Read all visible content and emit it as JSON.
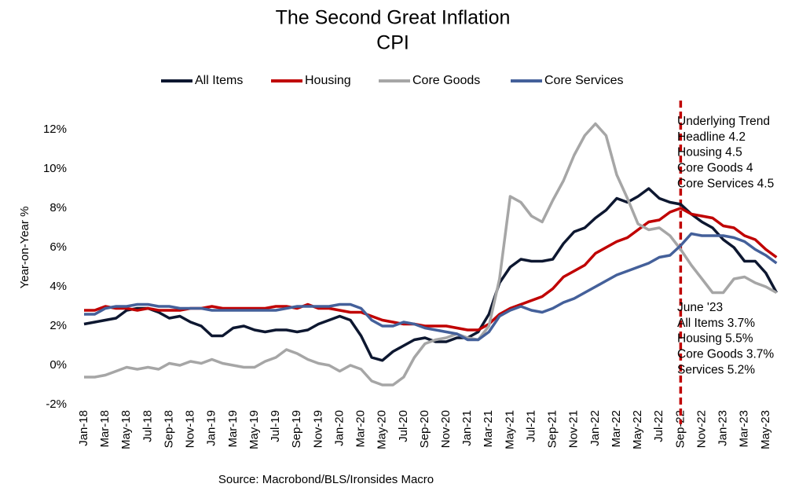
{
  "chart_data": {
    "type": "line",
    "title": "The Second Great Inflation",
    "subtitle": "CPI",
    "y_label": "Year-on-Year %",
    "source": "Source: Macrobond/BLS/Ironsides Macro",
    "categories": [
      "Jan-18",
      null,
      "Mar-18",
      null,
      "May-18",
      null,
      "Jul-18",
      null,
      "Sep-18",
      null,
      "Nov-18",
      null,
      "Jan-19",
      null,
      "Mar-19",
      null,
      "May-19",
      null,
      "Jul-19",
      null,
      "Sep-19",
      null,
      "Nov-19",
      null,
      "Jan-20",
      null,
      "Mar-20",
      null,
      "May-20",
      null,
      "Jul-20",
      null,
      "Sep-20",
      null,
      "Nov-20",
      null,
      "Jan-21",
      null,
      "Mar-21",
      null,
      "May-21",
      null,
      "Jul-21",
      null,
      "Sep-21",
      null,
      "Nov-21",
      null,
      "Jan-22",
      null,
      "Mar-22",
      null,
      "May-22",
      null,
      "Jul-22",
      null,
      "Sep-22",
      null,
      "Nov-22",
      null,
      "Jan-23",
      null,
      "Mar-23",
      null,
      "May-23",
      null
    ],
    "series": [
      {
        "name": "All Items",
        "color": "#0d1730",
        "values": [
          2.1,
          2.2,
          2.3,
          2.4,
          2.8,
          2.9,
          2.9,
          2.7,
          2.4,
          2.5,
          2.2,
          2.0,
          1.5,
          1.5,
          1.9,
          2.0,
          1.8,
          1.7,
          1.8,
          1.8,
          1.7,
          1.8,
          2.1,
          2.3,
          2.5,
          2.3,
          1.5,
          0.4,
          0.25,
          0.7,
          1.0,
          1.3,
          1.4,
          1.2,
          1.2,
          1.4,
          1.4,
          1.7,
          2.6,
          4.2,
          5.0,
          5.4,
          5.3,
          5.3,
          5.4,
          6.2,
          6.8,
          7.0,
          7.5,
          7.9,
          8.5,
          8.3,
          8.6,
          9.0,
          8.5,
          8.3,
          8.2,
          7.7,
          7.3,
          7.0,
          6.4,
          6.0,
          5.3,
          5.3,
          4.7,
          3.7
        ]
      },
      {
        "name": "Housing",
        "color": "#c00000",
        "values": [
          2.8,
          2.8,
          3.0,
          2.9,
          2.9,
          2.8,
          2.9,
          2.8,
          2.8,
          2.8,
          2.9,
          2.9,
          3.0,
          2.9,
          2.9,
          2.9,
          2.9,
          2.9,
          3.0,
          3.0,
          2.9,
          3.1,
          2.9,
          2.9,
          2.8,
          2.7,
          2.7,
          2.5,
          2.3,
          2.2,
          2.1,
          2.1,
          2.0,
          2.0,
          2.0,
          1.9,
          1.8,
          1.8,
          2.1,
          2.6,
          2.9,
          3.1,
          3.3,
          3.5,
          3.9,
          4.5,
          4.8,
          5.1,
          5.7,
          6.0,
          6.3,
          6.5,
          6.9,
          7.3,
          7.4,
          7.8,
          8.0,
          7.7,
          7.6,
          7.5,
          7.1,
          7.0,
          6.6,
          6.4,
          5.9,
          5.5
        ]
      },
      {
        "name": "Core Goods",
        "color": "#a6a6a6",
        "values": [
          -0.6,
          -0.6,
          -0.5,
          -0.3,
          -0.1,
          -0.2,
          -0.1,
          -0.2,
          0.1,
          0.0,
          0.2,
          0.1,
          0.3,
          0.1,
          0.0,
          -0.1,
          -0.1,
          0.2,
          0.4,
          0.8,
          0.6,
          0.3,
          0.1,
          0.0,
          -0.3,
          0.0,
          -0.2,
          -0.8,
          -1.0,
          -1.0,
          -0.6,
          0.4,
          1.1,
          1.3,
          1.4,
          1.6,
          1.4,
          1.3,
          2.0,
          4.4,
          8.6,
          8.3,
          7.6,
          7.3,
          8.4,
          9.4,
          10.7,
          11.7,
          12.3,
          11.7,
          9.7,
          8.5,
          7.2,
          6.9,
          7.0,
          6.6,
          5.9,
          5.1,
          4.4,
          3.7,
          3.7,
          4.4,
          4.5,
          4.2,
          4.0,
          3.7
        ]
      },
      {
        "name": "Core Services",
        "color": "#44609a",
        "values": [
          2.6,
          2.6,
          2.9,
          3.0,
          3.0,
          3.1,
          3.1,
          3.0,
          3.0,
          2.9,
          2.9,
          2.9,
          2.8,
          2.8,
          2.8,
          2.8,
          2.8,
          2.8,
          2.8,
          2.9,
          3.0,
          3.0,
          3.0,
          3.0,
          3.1,
          3.1,
          2.9,
          2.3,
          2.0,
          2.0,
          2.2,
          2.1,
          1.9,
          1.8,
          1.7,
          1.6,
          1.3,
          1.3,
          1.7,
          2.5,
          2.8,
          3.0,
          2.8,
          2.7,
          2.9,
          3.2,
          3.4,
          3.7,
          4.0,
          4.3,
          4.6,
          4.8,
          5.0,
          5.2,
          5.5,
          5.6,
          6.1,
          6.7,
          6.6,
          6.6,
          6.6,
          6.5,
          6.3,
          5.9,
          5.6,
          5.2
        ]
      }
    ],
    "ylim": [
      -2,
      13.4
    ],
    "yticks": [
      {
        "value": -2,
        "label": "-2%"
      },
      {
        "value": 0,
        "label": "0%"
      },
      {
        "value": 2,
        "label": "2%"
      },
      {
        "value": 4,
        "label": "4%"
      },
      {
        "value": 6,
        "label": "6%"
      },
      {
        "value": 8,
        "label": "8%"
      },
      {
        "value": 10,
        "label": "10%"
      },
      {
        "value": 12,
        "label": "12%"
      }
    ],
    "grid": false,
    "legend": "top",
    "reference_line": {
      "category": "Sep-22",
      "color": "#c00000"
    },
    "annotations": [
      {
        "lines": [
          "Underlying Trend",
          "Headline 4.2",
          "Housing 4.5",
          "Core Goods 4",
          "Core Services 4.5"
        ],
        "position": "top"
      },
      {
        "lines": [
          "June '23",
          "All Items 3.7%",
          "Housing 5.5%",
          "Core Goods 3.7%",
          "Services 5.2%"
        ],
        "position": "bottom"
      }
    ]
  }
}
